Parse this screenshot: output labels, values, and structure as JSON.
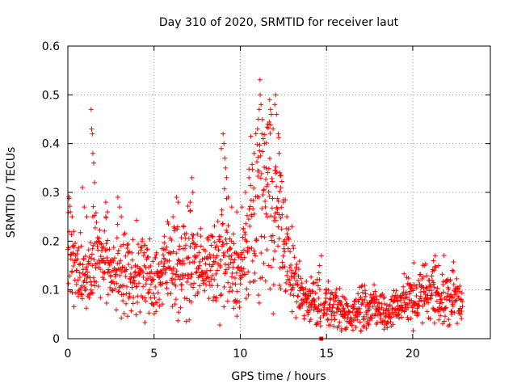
{
  "chart_data": {
    "type": "scatter",
    "title": "Day 310 of 2020, SRMTID for receiver laut",
    "xlabel": "GPS time / hours",
    "ylabel": "SRMTID / TECUs",
    "xlim": [
      0,
      24.5
    ],
    "ylim": [
      0,
      0.6
    ],
    "xticks": [
      "0",
      "5",
      "10",
      "15",
      "20"
    ],
    "yticks": [
      "0",
      "0.1",
      "0.2",
      "0.3",
      "0.4",
      "0.5",
      "0.6"
    ],
    "grid": true,
    "marker": "+",
    "series_color": "#ff0000",
    "profile": [
      [
        0.0,
        0.2,
        0.05
      ],
      [
        0.5,
        0.14,
        0.04
      ],
      [
        1.0,
        0.12,
        0.03
      ],
      [
        1.5,
        0.16,
        0.05
      ],
      [
        2.0,
        0.17,
        0.04
      ],
      [
        2.5,
        0.14,
        0.04
      ],
      [
        3.0,
        0.15,
        0.05
      ],
      [
        3.5,
        0.12,
        0.04
      ],
      [
        4.0,
        0.14,
        0.04
      ],
      [
        4.5,
        0.13,
        0.04
      ],
      [
        5.0,
        0.12,
        0.04
      ],
      [
        5.5,
        0.13,
        0.04
      ],
      [
        6.0,
        0.17,
        0.05
      ],
      [
        6.5,
        0.14,
        0.04
      ],
      [
        7.0,
        0.16,
        0.05
      ],
      [
        7.5,
        0.15,
        0.04
      ],
      [
        8.0,
        0.15,
        0.03
      ],
      [
        8.5,
        0.14,
        0.04
      ],
      [
        9.0,
        0.18,
        0.08
      ],
      [
        9.5,
        0.14,
        0.04
      ],
      [
        10.0,
        0.13,
        0.04
      ],
      [
        10.5,
        0.21,
        0.07
      ],
      [
        11.0,
        0.28,
        0.09
      ],
      [
        11.5,
        0.3,
        0.1
      ],
      [
        12.0,
        0.28,
        0.1
      ],
      [
        12.5,
        0.2,
        0.05
      ],
      [
        13.0,
        0.13,
        0.04
      ],
      [
        13.5,
        0.09,
        0.03
      ],
      [
        14.0,
        0.08,
        0.02
      ],
      [
        14.5,
        0.08,
        0.03
      ],
      [
        15.0,
        0.07,
        0.02
      ],
      [
        15.5,
        0.06,
        0.02
      ],
      [
        16.0,
        0.05,
        0.02
      ],
      [
        16.5,
        0.05,
        0.02
      ],
      [
        17.0,
        0.07,
        0.03
      ],
      [
        17.5,
        0.07,
        0.02
      ],
      [
        18.0,
        0.06,
        0.02
      ],
      [
        18.5,
        0.05,
        0.02
      ],
      [
        19.0,
        0.07,
        0.02
      ],
      [
        19.5,
        0.08,
        0.02
      ],
      [
        20.0,
        0.08,
        0.03
      ],
      [
        20.5,
        0.09,
        0.03
      ],
      [
        21.0,
        0.1,
        0.03
      ],
      [
        21.5,
        0.09,
        0.03
      ],
      [
        22.0,
        0.08,
        0.03
      ],
      [
        22.5,
        0.09,
        0.03
      ],
      [
        22.9,
        0.08,
        0.02
      ]
    ],
    "spikes": [
      [
        0.15,
        0.26
      ],
      [
        0.25,
        0.25
      ],
      [
        0.35,
        0.22
      ],
      [
        0.85,
        0.31
      ],
      [
        0.95,
        0.27
      ],
      [
        1.1,
        0.25
      ],
      [
        1.35,
        0.47
      ],
      [
        1.38,
        0.43
      ],
      [
        1.42,
        0.42
      ],
      [
        1.45,
        0.38
      ],
      [
        1.5,
        0.36
      ],
      [
        1.55,
        0.32
      ],
      [
        1.45,
        0.25
      ],
      [
        2.2,
        0.28
      ],
      [
        2.3,
        0.26
      ],
      [
        2.9,
        0.29
      ],
      [
        3.0,
        0.27
      ],
      [
        3.1,
        0.25
      ],
      [
        5.6,
        0.21
      ],
      [
        6.1,
        0.25
      ],
      [
        6.3,
        0.29
      ],
      [
        6.4,
        0.28
      ],
      [
        7.1,
        0.28
      ],
      [
        7.2,
        0.33
      ],
      [
        7.25,
        0.3
      ],
      [
        8.9,
        0.39
      ],
      [
        9.0,
        0.42
      ],
      [
        9.05,
        0.4
      ],
      [
        9.1,
        0.37
      ],
      [
        9.15,
        0.35
      ],
      [
        9.2,
        0.33
      ],
      [
        9.3,
        0.29
      ],
      [
        9.5,
        0.27
      ],
      [
        9.8,
        0.26
      ],
      [
        10.1,
        0.27
      ],
      [
        10.3,
        0.3
      ],
      [
        10.5,
        0.33
      ],
      [
        10.8,
        0.38
      ],
      [
        11.0,
        0.43
      ],
      [
        11.05,
        0.45
      ],
      [
        11.1,
        0.47
      ],
      [
        11.15,
        0.5
      ],
      [
        11.2,
        0.48
      ],
      [
        11.25,
        0.42
      ],
      [
        11.4,
        0.4
      ],
      [
        11.6,
        0.44
      ],
      [
        11.7,
        0.49
      ],
      [
        11.75,
        0.47
      ],
      [
        11.8,
        0.46
      ],
      [
        11.9,
        0.43
      ],
      [
        12.0,
        0.48
      ],
      [
        12.05,
        0.5
      ],
      [
        12.1,
        0.46
      ],
      [
        12.2,
        0.42
      ],
      [
        12.25,
        0.38
      ],
      [
        11.5,
        0.35
      ],
      [
        12.3,
        0.34
      ],
      [
        12.35,
        0.31
      ],
      [
        12.5,
        0.28
      ],
      [
        12.7,
        0.25
      ],
      [
        13.0,
        0.23
      ],
      [
        14.7,
        0.17
      ],
      [
        14.6,
        0.15
      ],
      [
        21.3,
        0.17
      ],
      [
        21.2,
        0.16
      ],
      [
        21.5,
        0.15
      ],
      [
        22.3,
        0.14
      ]
    ],
    "markers": [
      {
        "x": 14.7,
        "y": 0.0
      }
    ]
  }
}
